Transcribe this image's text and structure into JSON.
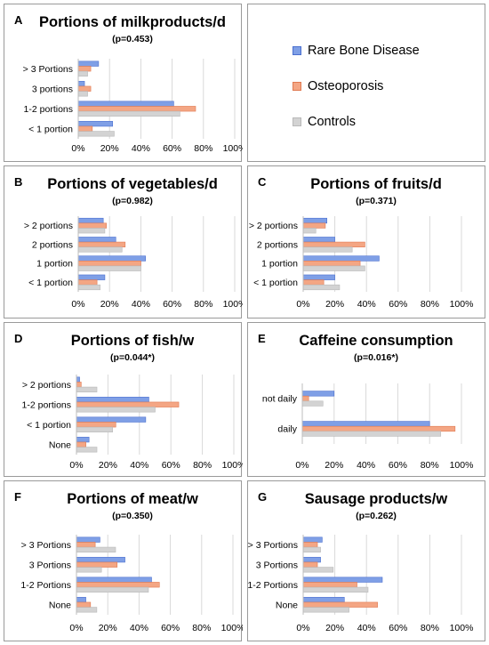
{
  "colors": {
    "rare": "#7f9fe6",
    "rare_edge": "#4a6fcf",
    "osteo": "#f4a684",
    "osteo_edge": "#e07a52",
    "controls": "#d3d3d3",
    "controls_edge": "#b9b9b9",
    "grid": "#d9d9d9",
    "axis": "#bdbdbd"
  },
  "legend": {
    "items": [
      {
        "name": "Rare Bone Disease",
        "color": "#7f9fe6"
      },
      {
        "name": "Osteoporosis",
        "color": "#f4a684"
      },
      {
        "name": "Controls",
        "color": "#d3d3d3"
      }
    ]
  },
  "chart_data": [
    {
      "panel": "A",
      "type": "bar",
      "orientation": "horizontal",
      "title": "Portions of milkproducts/d",
      "subtitle": "(p=0.453)",
      "categories": [
        "> 3 Portions",
        "3 portions",
        "1-2 portions",
        "< 1 portion"
      ],
      "series": [
        {
          "name": "Rare Bone Disease",
          "values": [
            13,
            4,
            61,
            22
          ]
        },
        {
          "name": "Osteoporosis",
          "values": [
            8,
            8,
            75,
            9
          ]
        },
        {
          "name": "Controls",
          "values": [
            6,
            6,
            65,
            23
          ]
        }
      ],
      "xlim": [
        0,
        100
      ],
      "xticks": [
        "0%",
        "20%",
        "40%",
        "60%",
        "80%",
        "100%"
      ],
      "grid": true
    },
    {
      "panel": "B",
      "type": "bar",
      "orientation": "horizontal",
      "title": "Portions of vegetables/d",
      "subtitle": "(p=0.982)",
      "categories": [
        "> 2 portions",
        "2 portions",
        "1 portion",
        "< 1 portion"
      ],
      "series": [
        {
          "name": "Rare Bone Disease",
          "values": [
            16,
            24,
            43,
            17
          ]
        },
        {
          "name": "Osteoporosis",
          "values": [
            18,
            30,
            40,
            12
          ]
        },
        {
          "name": "Controls",
          "values": [
            17,
            28,
            40,
            14
          ]
        }
      ],
      "xlim": [
        0,
        100
      ],
      "xticks": [
        "0%",
        "20%",
        "40%",
        "60%",
        "80%",
        "100%"
      ],
      "grid": true
    },
    {
      "panel": "C",
      "type": "bar",
      "orientation": "horizontal",
      "title": "Portions of fruits/d",
      "subtitle": "(p=0.371)",
      "categories": [
        "> 2 portions",
        "2 portions",
        "1 portion",
        "< 1 portion"
      ],
      "series": [
        {
          "name": "Rare Bone Disease",
          "values": [
            15,
            20,
            48,
            20
          ]
        },
        {
          "name": "Osteoporosis",
          "values": [
            14,
            39,
            36,
            13
          ]
        },
        {
          "name": "Controls",
          "values": [
            8,
            31,
            39,
            23
          ]
        }
      ],
      "xlim": [
        0,
        100
      ],
      "xticks": [
        "0%",
        "20%",
        "40%",
        "60%",
        "80%",
        "100%"
      ],
      "grid": true
    },
    {
      "panel": "D",
      "type": "bar",
      "orientation": "horizontal",
      "title": "Portions of fish/w",
      "subtitle": "(p=0.044*)",
      "categories": [
        "> 2 portions",
        "1-2 portions",
        "< 1 portion",
        "None"
      ],
      "series": [
        {
          "name": "Rare Bone Disease",
          "values": [
            2,
            46,
            44,
            8
          ]
        },
        {
          "name": "Osteoporosis",
          "values": [
            3,
            65,
            25,
            6
          ]
        },
        {
          "name": "Controls",
          "values": [
            13,
            50,
            23,
            13
          ]
        }
      ],
      "xlim": [
        0,
        100
      ],
      "xticks": [
        "0%",
        "20%",
        "40%",
        "60%",
        "80%",
        "100%"
      ],
      "grid": true
    },
    {
      "panel": "E",
      "type": "bar",
      "orientation": "horizontal",
      "title": "Caffeine consumption",
      "subtitle": "(p=0.016*)",
      "categories": [
        "not daily",
        "daily"
      ],
      "series": [
        {
          "name": "Rare Bone Disease",
          "values": [
            20,
            80
          ]
        },
        {
          "name": "Osteoporosis",
          "values": [
            4,
            96
          ]
        },
        {
          "name": "Controls",
          "values": [
            13,
            87
          ]
        }
      ],
      "xlim": [
        0,
        100
      ],
      "xticks": [
        "0%",
        "20%",
        "40%",
        "60%",
        "80%",
        "100%"
      ],
      "grid": true
    },
    {
      "panel": "F",
      "type": "bar",
      "orientation": "horizontal",
      "title": "Portions of meat/w",
      "subtitle": "(p=0.350)",
      "categories": [
        "> 3 Portions",
        "3 Portions",
        "1-2 Portions",
        "None"
      ],
      "series": [
        {
          "name": "Rare Bone Disease",
          "values": [
            15,
            31,
            48,
            6
          ]
        },
        {
          "name": "Osteoporosis",
          "values": [
            12,
            26,
            53,
            9
          ]
        },
        {
          "name": "Controls",
          "values": [
            25,
            16,
            46,
            13
          ]
        }
      ],
      "xlim": [
        0,
        100
      ],
      "xticks": [
        "0%",
        "20%",
        "40%",
        "60%",
        "80%",
        "100%"
      ],
      "grid": true
    },
    {
      "panel": "G",
      "type": "bar",
      "orientation": "horizontal",
      "title": "Sausage products/w",
      "subtitle": "(p=0.262)",
      "categories": [
        "> 3 Portions",
        "3 Portions",
        "1-2 Portions",
        "None"
      ],
      "series": [
        {
          "name": "Rare Bone Disease",
          "values": [
            12,
            11,
            50,
            26
          ]
        },
        {
          "name": "Osteoporosis",
          "values": [
            9,
            9,
            34,
            47
          ]
        },
        {
          "name": "Controls",
          "values": [
            11,
            19,
            41,
            29
          ]
        }
      ],
      "xlim": [
        0,
        100
      ],
      "xticks": [
        "0%",
        "20%",
        "40%",
        "60%",
        "80%",
        "100%"
      ],
      "grid": true
    }
  ]
}
